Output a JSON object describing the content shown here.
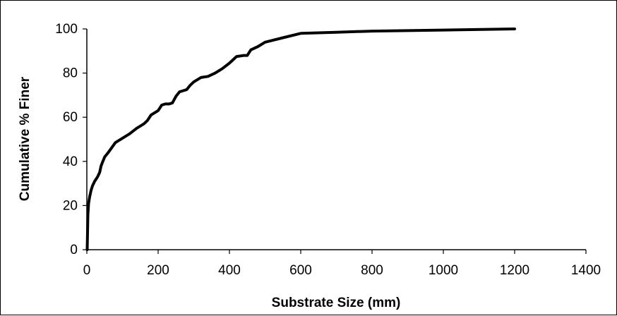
{
  "chart_data": {
    "type": "line",
    "title": "",
    "xlabel": "Substrate Size (mm)",
    "ylabel": "Cumulative % Finer",
    "xlim": [
      0,
      1400
    ],
    "ylim": [
      0,
      100
    ],
    "x_ticks": [
      0,
      200,
      400,
      600,
      800,
      1000,
      1200,
      1400
    ],
    "y_ticks": [
      0,
      20,
      40,
      60,
      80,
      100
    ],
    "grid": false,
    "legend": "none",
    "line_color": "#000000",
    "series": [
      {
        "x": [
          1,
          2,
          3,
          5,
          8,
          12,
          16,
          22,
          30,
          36,
          40,
          45,
          50,
          60,
          80,
          100,
          120,
          140,
          150,
          160,
          170,
          180,
          200,
          210,
          220,
          230,
          240,
          250,
          260,
          270,
          280,
          290,
          300,
          320,
          340,
          360,
          380,
          400,
          420,
          440,
          450,
          460,
          480,
          500,
          550,
          600,
          700,
          800,
          1000,
          1200
        ],
        "y": [
          0,
          8,
          16,
          21,
          24,
          27,
          29,
          31,
          33,
          35,
          38,
          40,
          42,
          44,
          48.5,
          50.5,
          52.5,
          55,
          56,
          57,
          58.5,
          61,
          63,
          65.5,
          66,
          66,
          66.5,
          69.5,
          71.5,
          72,
          72.5,
          74.5,
          76,
          78,
          78.5,
          80,
          82,
          84.5,
          87.5,
          88,
          88,
          90.5,
          92,
          94,
          96,
          98,
          98.5,
          99,
          99.5,
          100
        ]
      }
    ]
  }
}
